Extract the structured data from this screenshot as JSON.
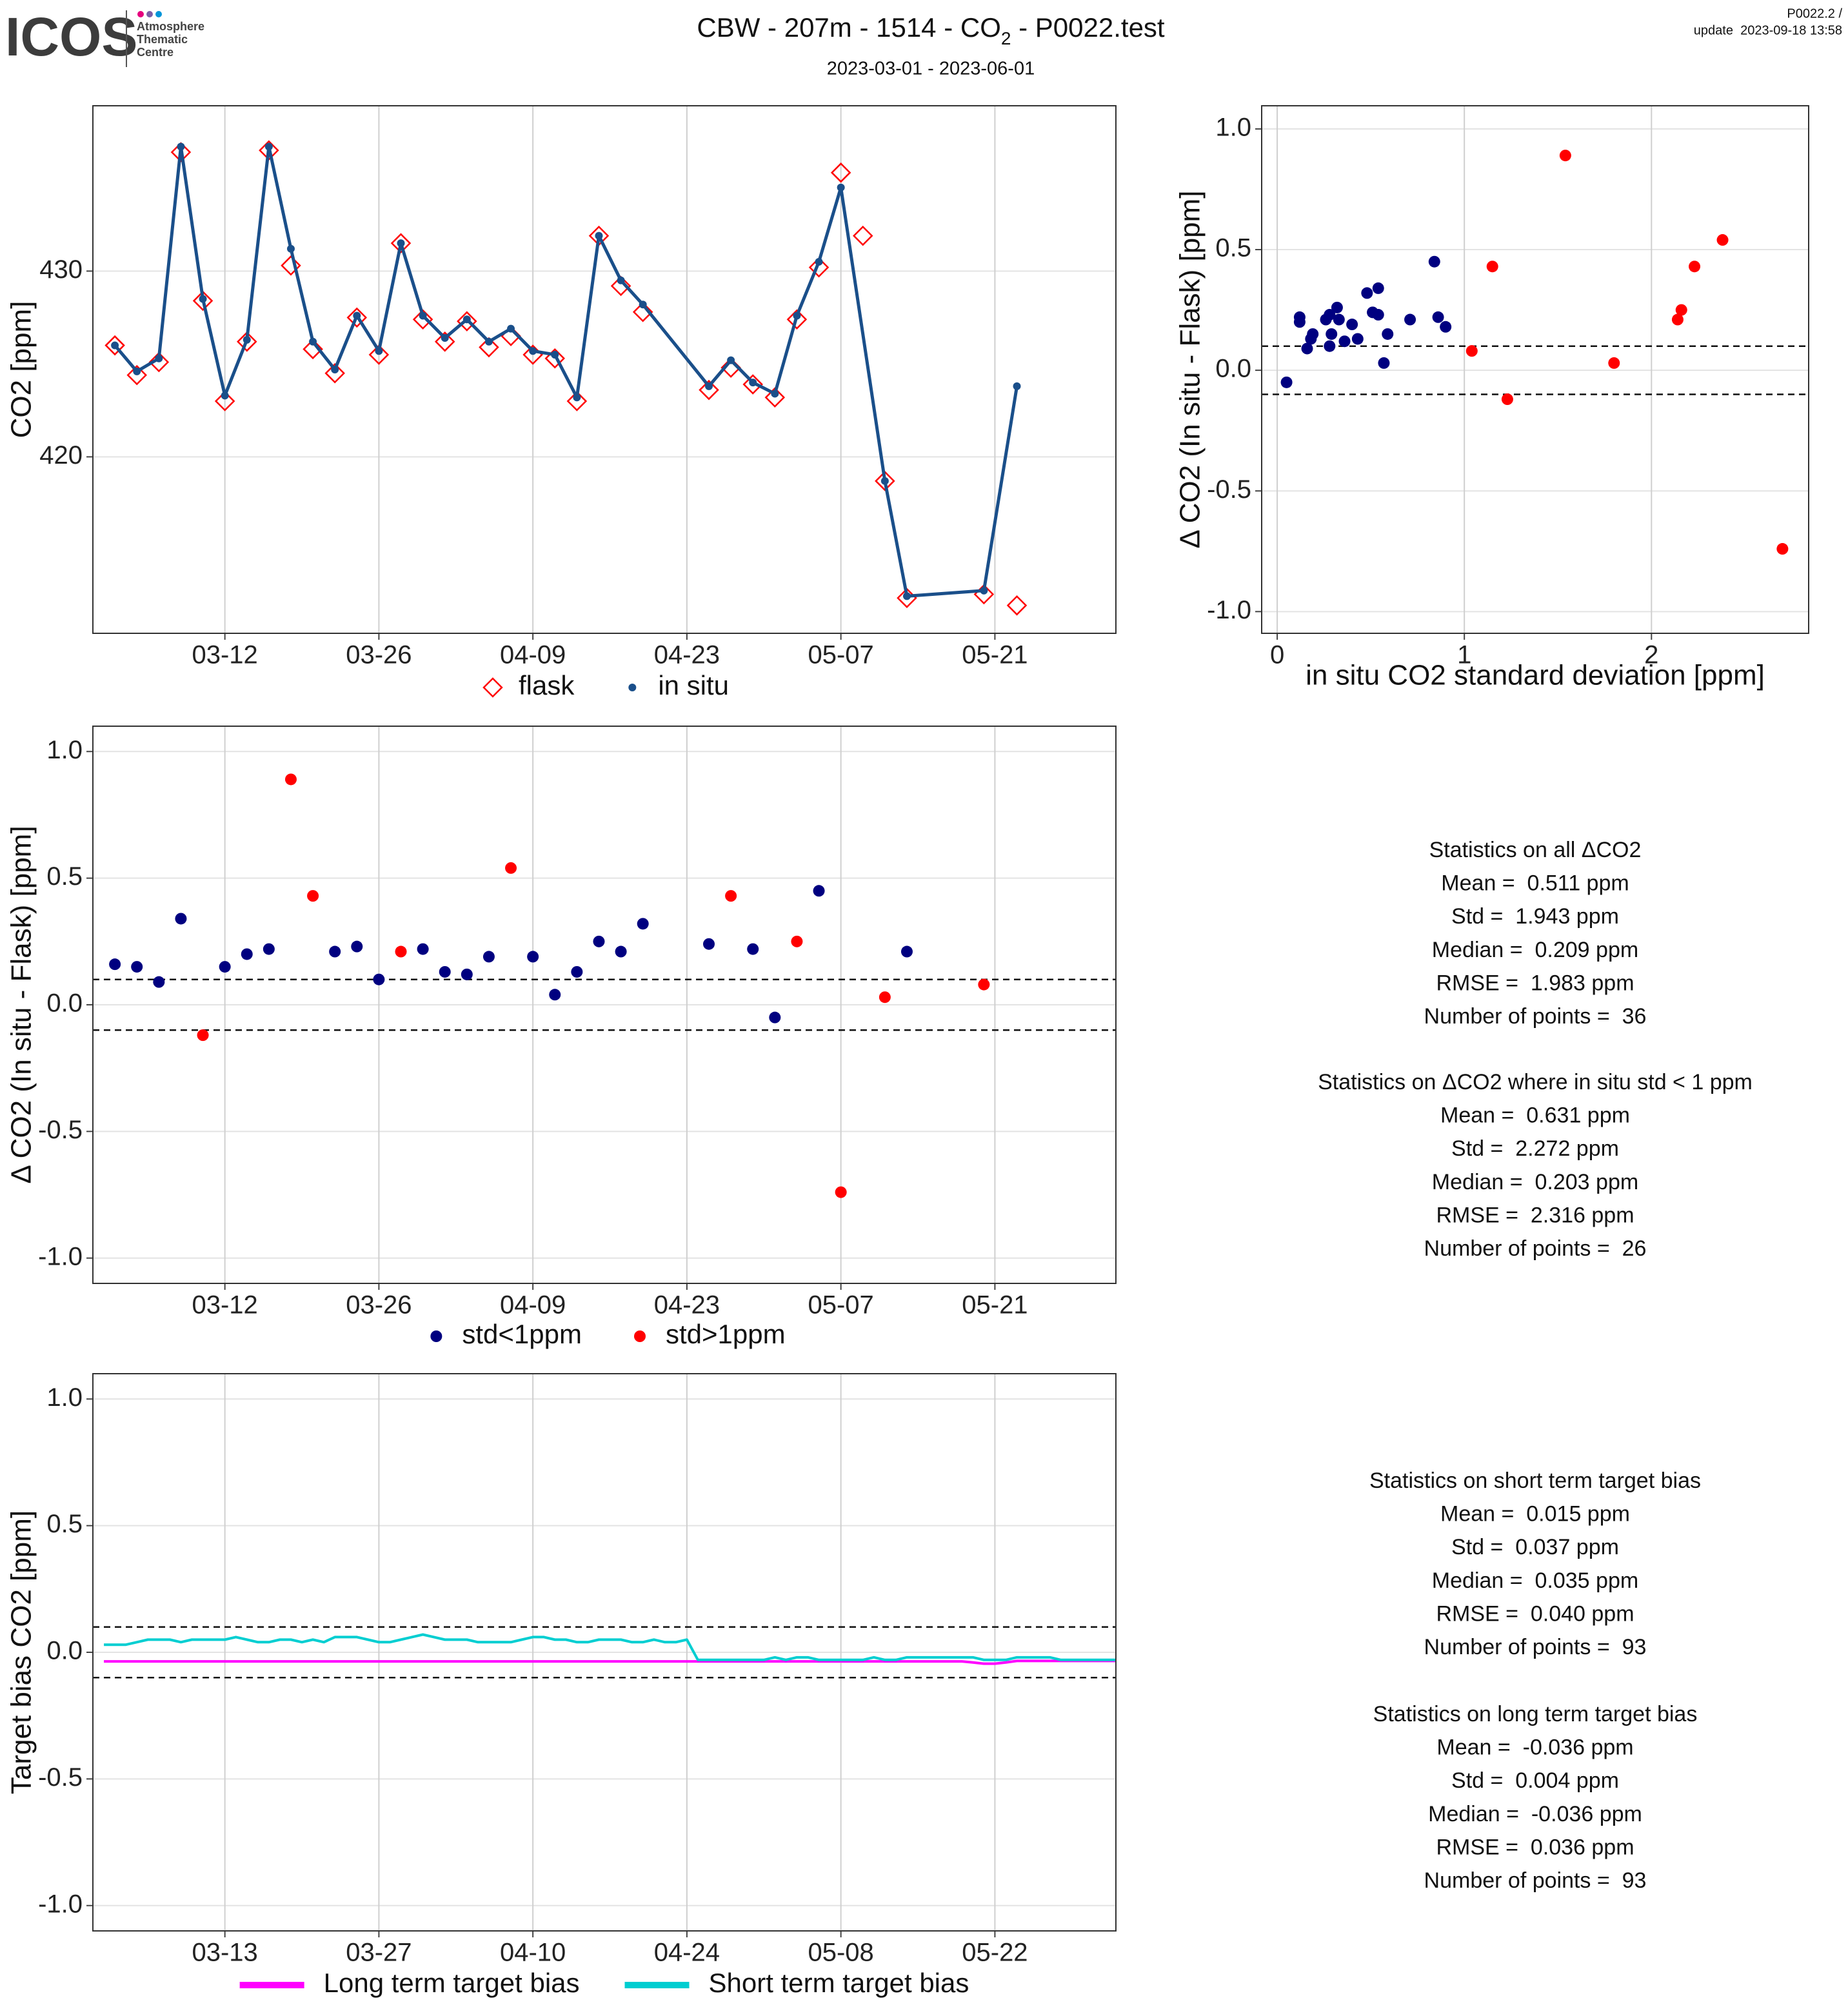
{
  "header": {
    "logo": "ICOS",
    "logo_sub": [
      "Atmosphere",
      "Thematic",
      "Centre"
    ],
    "title": [
      "CBW - 207m - 1514 - CO",
      "2",
      " - P0022.test"
    ],
    "subtitle": "2023-03-01 - 2023-06-01",
    "corner": [
      "P0022.2 /",
      "update  2023-09-18 13:58"
    ]
  },
  "chart_data": [
    {
      "type": "line",
      "ylabel": "CO2 [ppm]",
      "grid": true,
      "xlim": [
        "02-28",
        "06-01"
      ],
      "xticks": [
        "03-12",
        "03-26",
        "04-09",
        "04-23",
        "05-07",
        "05-21"
      ],
      "ylim": [
        410.5,
        438.9
      ],
      "yticks": [
        420,
        430
      ],
      "series": [
        {
          "name": "flask",
          "color": "#ff0000",
          "marker": "diamond",
          "line": false,
          "x": [
            "03-02",
            "03-04",
            "03-06",
            "03-08",
            "03-10",
            "03-12",
            "03-14",
            "03-16",
            "03-18",
            "03-20",
            "03-22",
            "03-24",
            "03-26",
            "03-28",
            "03-30",
            "04-01",
            "04-03",
            "04-05",
            "04-07",
            "04-09",
            "04-11",
            "04-13",
            "04-15",
            "04-17",
            "04-19",
            "04-25",
            "04-27",
            "04-29",
            "05-01",
            "05-03",
            "05-05",
            "05-07",
            "05-09",
            "05-11",
            "05-13",
            "05-20",
            "05-23"
          ],
          "values": [
            426.0,
            424.4,
            425.1,
            436.4,
            428.4,
            423.0,
            426.2,
            436.5,
            430.3,
            425.8,
            424.5,
            427.5,
            425.5,
            431.5,
            427.4,
            426.2,
            427.3,
            425.9,
            426.5,
            425.5,
            425.3,
            423.0,
            431.9,
            429.2,
            427.8,
            423.6,
            424.8,
            423.9,
            423.2,
            427.4,
            430.2,
            435.3,
            431.9,
            418.7,
            412.4,
            412.6,
            412.0
          ]
        },
        {
          "name": "in situ",
          "color": "#1a4f8a",
          "marker": "dot",
          "line": true,
          "x": [
            "03-02",
            "03-04",
            "03-06",
            "03-08",
            "03-10",
            "03-12",
            "03-14",
            "03-16",
            "03-18",
            "03-20",
            "03-22",
            "03-24",
            "03-26",
            "03-28",
            "03-30",
            "04-01",
            "04-03",
            "04-05",
            "04-07",
            "04-09",
            "04-11",
            "04-13",
            "04-15",
            "04-17",
            "04-19",
            "04-25",
            "04-27",
            "04-29",
            "05-01",
            "05-03",
            "05-05",
            "05-07",
            "05-11",
            "05-13",
            "05-20",
            "05-23"
          ],
          "values": [
            426.0,
            424.6,
            425.3,
            436.7,
            428.5,
            423.3,
            426.3,
            436.7,
            431.2,
            426.2,
            424.7,
            427.6,
            425.7,
            431.5,
            427.6,
            426.4,
            427.4,
            426.2,
            426.9,
            425.7,
            425.5,
            423.2,
            431.9,
            429.5,
            428.2,
            423.8,
            425.2,
            424.0,
            423.4,
            427.6,
            430.5,
            434.5,
            418.7,
            412.5,
            412.8,
            423.8
          ]
        }
      ]
    },
    {
      "type": "scatter",
      "xlabel": "in situ CO2 standard deviation [ppm]",
      "ylabel": "Δ CO2 (In situ - Flask) [ppm]",
      "grid": true,
      "xlim": [
        -0.083,
        2.84
      ],
      "xticks": [
        0,
        1,
        2
      ],
      "ylim": [
        -1.09,
        1.096
      ],
      "yticks": [
        {
          "value": -1,
          "label": "-1.0"
        },
        -0.5,
        {
          "value": 0,
          "label": "0.0"
        },
        0.5,
        {
          "value": 1,
          "label": "1.0"
        }
      ],
      "ref_lines": [
        0.1,
        -0.1
      ],
      "series": [
        {
          "color": "#000080",
          "marker": "dot",
          "line": false,
          "x": [
            0.05,
            0.12,
            0.12,
            0.16,
            0.18,
            0.19,
            0.26,
            0.28,
            0.28,
            0.29,
            0.32,
            0.33,
            0.36,
            0.4,
            0.43,
            0.48,
            0.51,
            0.54,
            0.54,
            0.59,
            0.57,
            0.71,
            0.84,
            0.86,
            0.9
          ],
          "values": [
            -0.05,
            0.2,
            0.22,
            0.09,
            0.13,
            0.15,
            0.21,
            0.23,
            0.1,
            0.15,
            0.26,
            0.21,
            0.12,
            0.19,
            0.13,
            0.32,
            0.24,
            0.23,
            0.34,
            0.15,
            0.03,
            0.21,
            0.45,
            0.22,
            0.18
          ]
        },
        {
          "color": "#ff0000",
          "marker": "dot",
          "line": false,
          "x": [
            1.04,
            1.15,
            1.23,
            1.54,
            1.8,
            2.14,
            2.16,
            2.23,
            2.38,
            2.7
          ],
          "values": [
            0.08,
            0.43,
            -0.12,
            0.89,
            0.03,
            0.21,
            0.25,
            0.43,
            0.54,
            -0.74
          ]
        }
      ]
    },
    {
      "type": "scatter",
      "ylabel": "Δ CO2 (In situ - Flask) [ppm]",
      "grid": true,
      "xlim": [
        "02-28",
        "06-01"
      ],
      "xticks": [
        "03-12",
        "03-26",
        "04-09",
        "04-23",
        "05-07",
        "05-21"
      ],
      "ylim": [
        -1.1,
        1.1
      ],
      "yticks": [
        {
          "value": -1,
          "label": "-1.0"
        },
        -0.5,
        {
          "value": 0,
          "label": "0.0"
        },
        0.5,
        {
          "value": 1,
          "label": "1.0"
        }
      ],
      "ref_lines": [
        0.1,
        -0.1
      ],
      "series": [
        {
          "name": "std<1ppm",
          "color": "#000080",
          "marker": "dot",
          "line": false,
          "x": [
            "03-02",
            "03-04",
            "03-06",
            "03-08",
            "03-12",
            "03-14",
            "03-16",
            "03-22",
            "03-24",
            "03-26",
            "03-30",
            "04-01",
            "04-03",
            "04-05",
            "04-09",
            "04-11",
            "04-13",
            "04-15",
            "04-17",
            "04-19",
            "04-25",
            "04-29",
            "05-01",
            "05-05",
            "05-13"
          ],
          "values": [
            0.16,
            0.15,
            0.09,
            0.34,
            0.15,
            0.2,
            0.22,
            0.21,
            0.23,
            0.1,
            0.22,
            0.13,
            0.12,
            0.19,
            0.19,
            0.04,
            0.13,
            0.25,
            0.21,
            0.32,
            0.24,
            0.22,
            -0.05,
            0.45,
            0.21
          ]
        },
        {
          "name": "std>1ppm",
          "color": "#ff0000",
          "marker": "dot",
          "line": false,
          "x": [
            "03-10",
            "03-18",
            "03-20",
            "03-28",
            "04-07",
            "04-27",
            "05-03",
            "05-07",
            "05-11",
            "05-20"
          ],
          "values": [
            -0.12,
            0.89,
            0.43,
            0.21,
            0.54,
            0.43,
            0.25,
            -0.74,
            0.03,
            0.08
          ]
        }
      ]
    },
    {
      "type": "line",
      "ylabel": "Target bias CO2 [ppm]",
      "grid": true,
      "xlim": [
        "03-01",
        "06-02"
      ],
      "xticks": [
        "03-13",
        "03-27",
        "04-10",
        "04-24",
        "05-08",
        "05-22"
      ],
      "ylim": [
        -1.1,
        1.1
      ],
      "yticks": [
        {
          "value": -1,
          "label": "-1.0"
        },
        -0.5,
        {
          "value": 0,
          "label": "0.0"
        },
        0.5,
        {
          "value": 1,
          "label": "1.0"
        }
      ],
      "ref_lines": [
        0.1,
        -0.1
      ],
      "x": [
        "03-02",
        "03-03",
        "03-04",
        "03-05",
        "03-06",
        "03-07",
        "03-08",
        "03-09",
        "03-10",
        "03-11",
        "03-12",
        "03-13",
        "03-14",
        "03-15",
        "03-16",
        "03-17",
        "03-18",
        "03-19",
        "03-20",
        "03-21",
        "03-22",
        "03-23",
        "03-24",
        "03-25",
        "03-26",
        "03-27",
        "03-28",
        "03-29",
        "03-30",
        "03-31",
        "04-01",
        "04-02",
        "04-03",
        "04-04",
        "04-05",
        "04-06",
        "04-07",
        "04-08",
        "04-09",
        "04-10",
        "04-11",
        "04-12",
        "04-13",
        "04-14",
        "04-15",
        "04-16",
        "04-17",
        "04-18",
        "04-19",
        "04-20",
        "04-21",
        "04-22",
        "04-23",
        "04-24",
        "04-25",
        "04-26",
        "04-27",
        "04-28",
        "04-29",
        "04-30",
        "05-01",
        "05-02",
        "05-03",
        "05-04",
        "05-05",
        "05-06",
        "05-07",
        "05-08",
        "05-09",
        "05-10",
        "05-11",
        "05-12",
        "05-13",
        "05-14",
        "05-15",
        "05-16",
        "05-17",
        "05-18",
        "05-19",
        "05-20",
        "05-21",
        "05-22",
        "05-23",
        "05-24",
        "05-25",
        "05-26",
        "05-27",
        "05-28",
        "05-29",
        "05-30",
        "05-31",
        "06-01",
        "06-02"
      ],
      "series": [
        {
          "name": "Long term target bias",
          "color": "#ff00ff",
          "line": true,
          "values": [
            -0.036,
            -0.036,
            -0.036,
            -0.036,
            -0.036,
            -0.036,
            -0.036,
            -0.036,
            -0.036,
            -0.036,
            -0.036,
            -0.036,
            -0.036,
            -0.036,
            -0.036,
            -0.036,
            -0.036,
            -0.036,
            -0.036,
            -0.036,
            -0.036,
            -0.036,
            -0.036,
            -0.036,
            -0.036,
            -0.036,
            -0.036,
            -0.036,
            -0.036,
            -0.036,
            -0.036,
            -0.036,
            -0.036,
            -0.036,
            -0.036,
            -0.036,
            -0.036,
            -0.036,
            -0.036,
            -0.036,
            -0.036,
            -0.036,
            -0.036,
            -0.036,
            -0.036,
            -0.036,
            -0.036,
            -0.036,
            -0.036,
            -0.036,
            -0.036,
            -0.036,
            -0.036,
            -0.036,
            -0.036,
            -0.036,
            -0.036,
            -0.036,
            -0.036,
            -0.036,
            -0.036,
            -0.036,
            -0.036,
            -0.036,
            -0.036,
            -0.036,
            -0.036,
            -0.036,
            -0.036,
            -0.036,
            -0.036,
            -0.036,
            -0.036,
            -0.036,
            -0.036,
            -0.036,
            -0.036,
            -0.036,
            -0.036,
            -0.04,
            -0.045,
            -0.045,
            -0.04,
            -0.034,
            -0.034,
            -0.034,
            -0.034,
            -0.034,
            -0.034,
            -0.034,
            -0.034,
            -0.034,
            -0.034
          ]
        },
        {
          "name": "Short term target bias",
          "color": "#00ced1",
          "line": true,
          "values": [
            0.03,
            0.03,
            0.03,
            0.04,
            0.05,
            0.05,
            0.05,
            0.04,
            0.05,
            0.05,
            0.05,
            0.05,
            0.06,
            0.05,
            0.04,
            0.04,
            0.05,
            0.05,
            0.04,
            0.05,
            0.04,
            0.06,
            0.06,
            0.06,
            0.05,
            0.04,
            0.04,
            0.05,
            0.06,
            0.07,
            0.06,
            0.05,
            0.05,
            0.05,
            0.04,
            0.04,
            0.04,
            0.04,
            0.05,
            0.06,
            0.06,
            0.05,
            0.05,
            0.04,
            0.04,
            0.05,
            0.05,
            0.05,
            0.04,
            0.04,
            0.05,
            0.04,
            0.04,
            0.05,
            -0.03,
            -0.03,
            -0.03,
            -0.03,
            -0.03,
            -0.03,
            -0.03,
            -0.02,
            -0.03,
            -0.02,
            -0.02,
            -0.03,
            -0.03,
            -0.03,
            -0.03,
            -0.03,
            -0.02,
            -0.03,
            -0.03,
            -0.02,
            -0.02,
            -0.02,
            -0.02,
            -0.02,
            -0.02,
            -0.02,
            -0.03,
            -0.03,
            -0.03,
            -0.02,
            -0.02,
            -0.02,
            -0.02,
            -0.03,
            -0.03,
            -0.03,
            -0.03,
            -0.03,
            -0.03
          ]
        }
      ]
    }
  ],
  "stats": [
    {
      "title": "Statistics on all ΔCO2",
      "lines": [
        "Mean =  0.511 ppm",
        "Std =  1.943 ppm",
        "Median =  0.209 ppm",
        "RMSE =  1.983 ppm",
        "Number of points =  36"
      ]
    },
    {
      "title": "Statistics on ΔCO2 where in situ std < 1 ppm",
      "lines": [
        "Mean =  0.631 ppm",
        "Std =  2.272 ppm",
        "Median =  0.203 ppm",
        "RMSE =  2.316 ppm",
        "Number of points =  26"
      ]
    },
    {
      "title": "Statistics on short term target bias",
      "lines": [
        "Mean =  0.015 ppm",
        "Std =  0.037 ppm",
        "Median =  0.035 ppm",
        "RMSE =  0.040 ppm",
        "Number of points =  93"
      ]
    },
    {
      "title": "Statistics on long term target bias",
      "lines": [
        "Mean =  -0.036 ppm",
        "Std =  0.004 ppm",
        "Median =  -0.036 ppm",
        "RMSE =  0.036 ppm",
        "Number of points =  93"
      ]
    }
  ]
}
